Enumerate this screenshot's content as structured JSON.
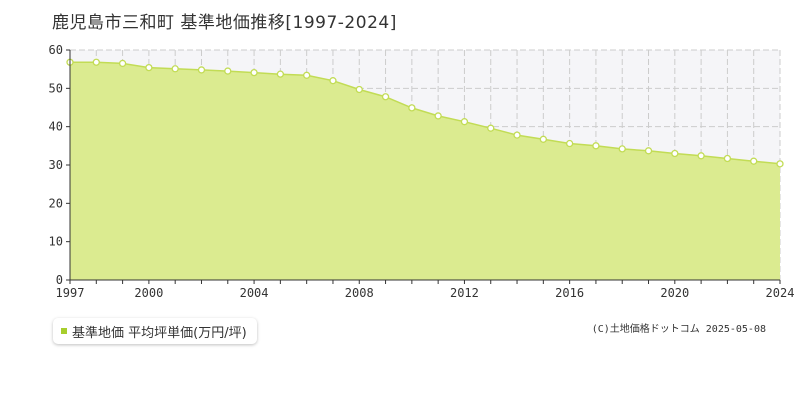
{
  "page": {
    "title": "鹿児島市三和町 基準地価推移[1997-2024]",
    "copyright": "(C)土地価格ドットコム 2025-05-08"
  },
  "legend": {
    "label": "基準地価 平均坪単価(万円/坪)"
  },
  "colors": {
    "fill": "#dbeb90",
    "line": "#c2dc55",
    "marker": "#c2dc55",
    "marker_fill": "#ffffff",
    "grid": "#cccccc",
    "axis": "#333333",
    "band": "#f5f5f8",
    "legend_swatch": "#a7ce2d"
  },
  "chart_data": {
    "type": "area",
    "title": "鹿児島市三和町 基準地価推移[1997-2024]",
    "xlabel": "",
    "ylabel": "",
    "xlim": [
      1997,
      2024
    ],
    "ylim": [
      0,
      60
    ],
    "x_ticks": [
      1997,
      2000,
      2004,
      2008,
      2012,
      2016,
      2020,
      2024
    ],
    "y_ticks": [
      0,
      10,
      20,
      30,
      40,
      50,
      60
    ],
    "grid": true,
    "legend_position": "bottom-left",
    "series": [
      {
        "name": "基準地価 平均坪単価(万円/坪)",
        "x": [
          1997,
          1998,
          1999,
          2000,
          2001,
          2002,
          2003,
          2004,
          2005,
          2006,
          2007,
          2008,
          2009,
          2010,
          2011,
          2012,
          2013,
          2014,
          2015,
          2016,
          2017,
          2018,
          2019,
          2020,
          2021,
          2022,
          2023,
          2024
        ],
        "values": [
          56.8,
          56.8,
          56.5,
          55.4,
          55.1,
          54.8,
          54.5,
          54.1,
          53.7,
          53.4,
          52.0,
          49.7,
          47.8,
          44.9,
          42.8,
          41.3,
          39.6,
          37.8,
          36.7,
          35.6,
          35.0,
          34.2,
          33.7,
          33.0,
          32.4,
          31.7,
          31.0,
          30.3
        ]
      }
    ]
  }
}
